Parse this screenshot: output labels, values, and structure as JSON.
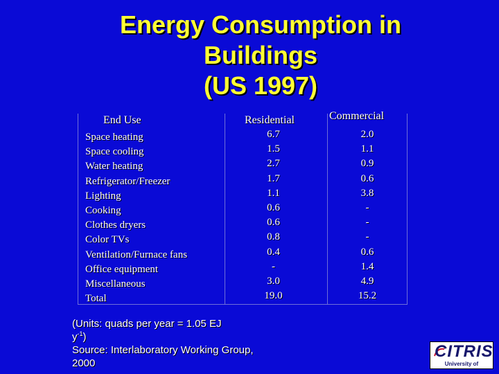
{
  "title": {
    "line1": "Energy Consumption in",
    "line2": "Buildings",
    "line3": "(US 1997)"
  },
  "table": {
    "headers": {
      "end_use": "End Use",
      "residential": "Residential",
      "commercial": "Commercial"
    },
    "end_uses": [
      "Space heating",
      "Space cooling",
      "Water heating",
      "Refrigerator/Freezer",
      "Lighting",
      "Cooking",
      "Clothes dryers",
      "Color TVs",
      "Ventilation/Furnace fans",
      "Office equipment",
      "Miscellaneous",
      "Total"
    ],
    "residential": [
      "6.7",
      "1.5",
      "2.7",
      "1.7",
      "1.1",
      "0.6",
      "0.6",
      "0.8",
      "0.4",
      "-",
      "3.0",
      "19.0"
    ],
    "commercial": [
      "2.0",
      "1.1",
      "0.9",
      "0.6",
      "3.8",
      "-",
      "-",
      "-",
      "0.6",
      "1.4",
      "4.9",
      "15.2"
    ]
  },
  "notes": {
    "units_line1": "(Units: quads per year = 1.05 EJ",
    "units_line2_prefix": "y",
    "units_line2_exp": "-1",
    "units_line2_suffix": ")",
    "source_line1": "Source: Interlaboratory Working Group,",
    "source_line2": "2000"
  },
  "logo": {
    "word": "CITRIS",
    "subtitle": "University of California"
  },
  "colors": {
    "background": "#0a0ad6",
    "title": "#ffff33",
    "text": "#ffffff"
  }
}
